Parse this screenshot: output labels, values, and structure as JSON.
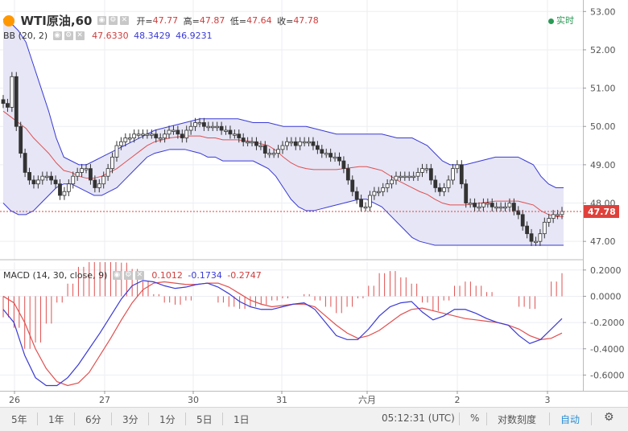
{
  "header": {
    "symbol": "WTI原油",
    "interval": "60",
    "open_label": "开=",
    "open": "47.77",
    "high_label": "高=",
    "high": "47.87",
    "low_label": "低=",
    "low": "47.64",
    "close_label": "收=",
    "close": "47.78",
    "realtime": "实时"
  },
  "bb": {
    "label": "BB (20, 2)",
    "v1": "47.6330",
    "v2": "48.3429",
    "v3": "46.9231"
  },
  "macd": {
    "label": "MACD (14, 30, close, 9)",
    "v1": "0.1012",
    "v2": "-0.1734",
    "v3": "-0.2747"
  },
  "last_price_tag": "47.78",
  "price_axis": [
    "53.00",
    "52.00",
    "51.00",
    "50.00",
    "49.00",
    "48.00",
    "47.00"
  ],
  "macd_axis": [
    "0.2000",
    "0.0000",
    "-0.2000",
    "-0.4000",
    "-0.6000"
  ],
  "time_axis": [
    "26",
    "27",
    "30",
    "31",
    "六月",
    "2",
    "3"
  ],
  "toolbar": {
    "ranges": [
      "5年",
      "1年",
      "6分",
      "3分",
      "1分",
      "5日",
      "1日"
    ],
    "clock": "05:12:31 (UTC)",
    "percent": "%",
    "log": "对数刻度",
    "auto": "自动",
    "settings_icon": "gear-icon"
  },
  "colors": {
    "up": "#2a2a2a",
    "down": "#2a2a2a",
    "bb_mid": "#e05050",
    "bb_band": "#3a3ad6",
    "bb_fill": "#e6e6f6",
    "macd_line": "#3a3ad6",
    "signal_line": "#e05050",
    "hist": "#e05050",
    "accent_green": "#2a9a55",
    "price_tag": "#e0403a"
  },
  "chart_data": {
    "type": "candlestick",
    "price_ylim": [
      46.5,
      53.3
    ],
    "macd_ylim": [
      -0.72,
      0.26
    ],
    "x_ticks": [
      "26",
      "27",
      "30",
      "31",
      "六月",
      "2",
      "3"
    ],
    "close": [
      50.6,
      50.5,
      51.3,
      50.0,
      49.3,
      48.8,
      48.6,
      48.5,
      48.6,
      48.7,
      48.7,
      48.6,
      48.5,
      48.2,
      48.3,
      48.5,
      48.7,
      48.8,
      48.9,
      48.9,
      48.6,
      48.4,
      48.5,
      48.7,
      48.9,
      49.2,
      49.5,
      49.6,
      49.7,
      49.7,
      49.8,
      49.8,
      49.8,
      49.8,
      49.8,
      49.7,
      49.7,
      49.8,
      49.9,
      49.9,
      49.8,
      49.7,
      49.9,
      50.0,
      50.1,
      50.1,
      50.0,
      50.0,
      50.0,
      50.0,
      49.9,
      49.9,
      49.8,
      49.8,
      49.7,
      49.6,
      49.6,
      49.6,
      49.5,
      49.5,
      49.3,
      49.3,
      49.3,
      49.4,
      49.5,
      49.6,
      49.6,
      49.5,
      49.6,
      49.6,
      49.6,
      49.5,
      49.4,
      49.3,
      49.3,
      49.2,
      49.2,
      49.1,
      48.9,
      48.6,
      48.3,
      48.1,
      47.9,
      47.9,
      48.2,
      48.3,
      48.3,
      48.4,
      48.5,
      48.6,
      48.7,
      48.7,
      48.7,
      48.7,
      48.7,
      48.8,
      48.9,
      48.9,
      48.6,
      48.4,
      48.3,
      48.4,
      48.6,
      48.9,
      49.0,
      48.5,
      48.0,
      48.0,
      47.9,
      47.9,
      48.0,
      48.0,
      47.9,
      47.9,
      47.9,
      47.9,
      48.0,
      47.8,
      47.7,
      47.4,
      47.2,
      47.0,
      47.0,
      47.2,
      47.5,
      47.6,
      47.7,
      47.7,
      47.78
    ],
    "bb_upper": [
      52.8,
      52.7,
      52.5,
      52.2,
      51.6,
      51.0,
      50.4,
      49.7,
      49.2,
      49.1,
      49.0,
      49.0,
      49.1,
      49.2,
      49.3,
      49.4,
      49.5,
      49.6,
      49.7,
      49.8,
      49.9,
      49.95,
      50.0,
      50.05,
      50.1,
      50.15,
      50.2,
      50.2,
      50.2,
      50.2,
      50.2,
      50.2,
      50.15,
      50.1,
      50.1,
      50.1,
      50.05,
      50.0,
      50.0,
      50.0,
      50.0,
      49.95,
      49.9,
      49.85,
      49.8,
      49.8,
      49.8,
      49.8,
      49.8,
      49.8,
      49.8,
      49.75,
      49.7,
      49.7,
      49.7,
      49.6,
      49.5,
      49.3,
      49.1,
      49.0,
      49.0,
      49.0,
      49.05,
      49.1,
      49.15,
      49.2,
      49.2,
      49.2,
      49.2,
      49.1,
      49.0,
      48.7,
      48.5,
      48.4,
      48.4
    ],
    "bb_lower": [
      48.0,
      47.8,
      47.7,
      47.7,
      47.8,
      48.0,
      48.2,
      48.4,
      48.5,
      48.5,
      48.4,
      48.3,
      48.2,
      48.2,
      48.3,
      48.4,
      48.6,
      48.8,
      49.0,
      49.2,
      49.3,
      49.35,
      49.4,
      49.4,
      49.4,
      49.35,
      49.3,
      49.2,
      49.2,
      49.1,
      49.1,
      49.1,
      49.1,
      49.1,
      49.0,
      48.9,
      48.7,
      48.4,
      48.1,
      47.9,
      47.8,
      47.8,
      47.85,
      47.9,
      47.95,
      48.0,
      48.05,
      48.1,
      48.1,
      48.0,
      47.9,
      47.7,
      47.5,
      47.3,
      47.1,
      47.0,
      46.95,
      46.9,
      46.9,
      46.9,
      46.9,
      46.9,
      46.9,
      46.9,
      46.9,
      46.9,
      46.9,
      46.9,
      46.9,
      46.9,
      46.9,
      46.9,
      46.9,
      46.9,
      46.9
    ],
    "macd_line": [
      -0.1,
      -0.2,
      -0.45,
      -0.62,
      -0.68,
      -0.68,
      -0.62,
      -0.52,
      -0.4,
      -0.28,
      -0.15,
      -0.02,
      0.08,
      0.12,
      0.11,
      0.08,
      0.06,
      0.07,
      0.09,
      0.1,
      0.07,
      0.02,
      -0.04,
      -0.08,
      -0.1,
      -0.1,
      -0.08,
      -0.06,
      -0.05,
      -0.1,
      -0.2,
      -0.3,
      -0.33,
      -0.33,
      -0.25,
      -0.15,
      -0.08,
      -0.05,
      -0.04,
      -0.12,
      -0.18,
      -0.15,
      -0.1,
      -0.1,
      -0.13,
      -0.17,
      -0.2,
      -0.22,
      -0.3,
      -0.36,
      -0.33,
      -0.25,
      -0.17
    ],
    "signal_line": [
      0.0,
      -0.05,
      -0.2,
      -0.4,
      -0.55,
      -0.65,
      -0.68,
      -0.66,
      -0.58,
      -0.45,
      -0.32,
      -0.18,
      -0.05,
      0.05,
      0.1,
      0.11,
      0.1,
      0.09,
      0.09,
      0.1,
      0.1,
      0.07,
      0.02,
      -0.03,
      -0.06,
      -0.08,
      -0.07,
      -0.06,
      -0.06,
      -0.08,
      -0.15,
      -0.22,
      -0.28,
      -0.32,
      -0.3,
      -0.26,
      -0.2,
      -0.14,
      -0.1,
      -0.09,
      -0.11,
      -0.13,
      -0.15,
      -0.17,
      -0.18,
      -0.19,
      -0.2,
      -0.22,
      -0.25,
      -0.3,
      -0.33,
      -0.32,
      -0.28
    ]
  }
}
